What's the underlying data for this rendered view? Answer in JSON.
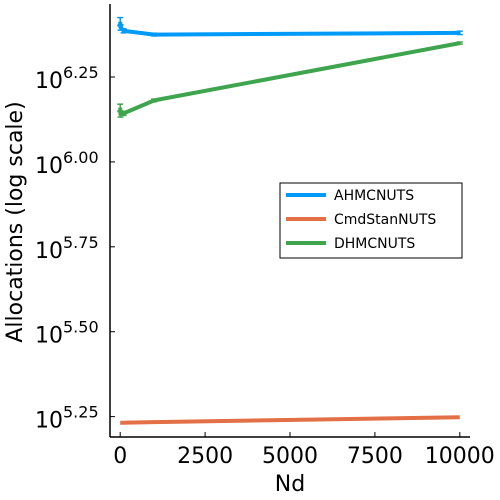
{
  "chart_data": {
    "type": "line",
    "xlabel": "Nd",
    "ylabel": "Allocations (log scale)",
    "y_scale": "log10",
    "xlim": [
      -300,
      10300
    ],
    "ylim_log10": [
      5.19,
      6.465
    ],
    "x_ticks": [
      {
        "value": 0,
        "label": "0"
      },
      {
        "value": 2500,
        "label": "2500"
      },
      {
        "value": 5000,
        "label": "5000"
      },
      {
        "value": 7500,
        "label": "7500"
      },
      {
        "value": 10000,
        "label": "10000"
      }
    ],
    "y_ticks": [
      {
        "exp": 5.25,
        "base": "10",
        "sup": "5.25"
      },
      {
        "exp": 5.5,
        "base": "10",
        "sup": "5.50"
      },
      {
        "exp": 5.75,
        "base": "10",
        "sup": "5.75"
      },
      {
        "exp": 6.0,
        "base": "10",
        "sup": "6.00"
      },
      {
        "exp": 6.25,
        "base": "10",
        "sup": "6.25"
      }
    ],
    "legend_position": "right",
    "grid": false,
    "series": [
      {
        "name": "AHMCNUTS",
        "color": "#009AF9",
        "x": [
          1,
          10,
          100,
          1000,
          10000
        ],
        "log10_y": [
          6.413,
          6.396,
          6.386,
          6.375,
          6.38
        ],
        "error_log10": [
          0.012,
          0.008,
          0.006,
          0.004,
          0.005
        ]
      },
      {
        "name": "CmdStanNUTS",
        "color": "#E26F46",
        "x": [
          1,
          10,
          100,
          1000,
          10000
        ],
        "log10_y": [
          5.232,
          5.232,
          5.232,
          5.234,
          5.248
        ],
        "error_log10": [
          0,
          0,
          0,
          0,
          0
        ]
      },
      {
        "name": "DHMCNUTS",
        "color": "#3EA44E",
        "x": [
          1,
          10,
          100,
          1000,
          10000
        ],
        "log10_y": [
          6.16,
          6.14,
          6.143,
          6.181,
          6.35
        ],
        "error_log10": [
          0.01,
          0.008,
          0.006,
          0.004,
          0.003
        ]
      }
    ]
  }
}
